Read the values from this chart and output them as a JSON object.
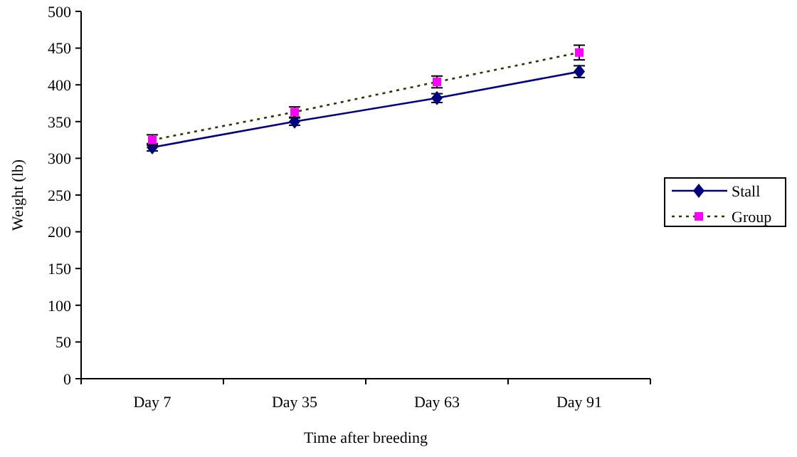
{
  "chart_data": {
    "type": "line",
    "xlabel": "Time after breeding",
    "ylabel": "Weight (lb)",
    "categories": [
      "Day 7",
      "Day 35",
      "Day 63",
      "Day 91"
    ],
    "series": [
      {
        "name": "Stall",
        "color": "#000080",
        "values": [
          315,
          350,
          382,
          418
        ],
        "errors": [
          5,
          5,
          6,
          8
        ],
        "marker": "diamond",
        "line_style": "solid"
      },
      {
        "name": "Group",
        "color": "#ff00ff",
        "values": [
          325,
          363,
          404,
          444
        ],
        "errors": [
          7,
          7,
          8,
          10
        ],
        "marker": "square",
        "line_style": "dotted"
      }
    ],
    "ylim": [
      0,
      500
    ],
    "yticks": [
      0,
      50,
      100,
      150,
      200,
      250,
      300,
      350,
      400,
      450,
      500
    ],
    "grid": false,
    "legend": "right"
  }
}
